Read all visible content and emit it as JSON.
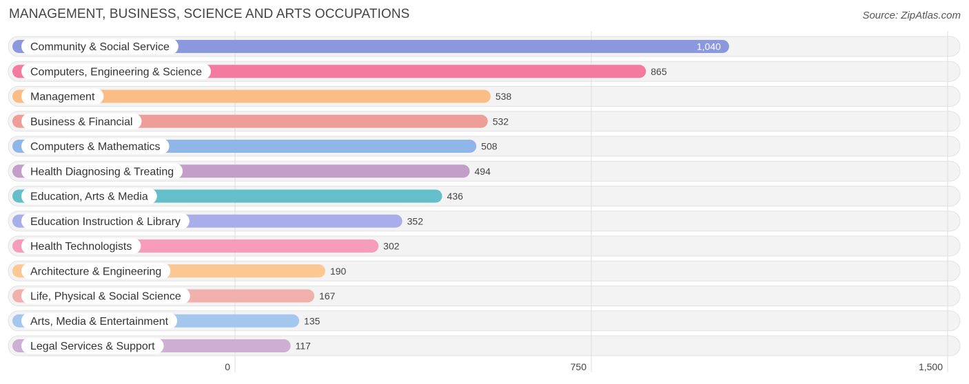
{
  "header": {
    "title": "MANAGEMENT, BUSINESS, SCIENCE AND ARTS OCCUPATIONS",
    "source": "Source: ZipAtlas.com"
  },
  "chart_data": {
    "type": "bar",
    "orientation": "horizontal",
    "title": "MANAGEMENT, BUSINESS, SCIENCE AND ARTS OCCUPATIONS",
    "xlabel": "",
    "ylabel": "",
    "xlim": [
      0,
      1500
    ],
    "ticks": [
      {
        "value": 0,
        "label": "0"
      },
      {
        "value": 750,
        "label": "750"
      },
      {
        "value": 1500,
        "label": "1,500"
      }
    ],
    "grid": true,
    "categories": [
      "Community & Social Service",
      "Computers, Engineering & Science",
      "Management",
      "Business & Financial",
      "Computers & Mathematics",
      "Health Diagnosing & Treating",
      "Education, Arts & Media",
      "Education Instruction & Library",
      "Health Technologists",
      "Architecture & Engineering",
      "Life, Physical & Social Science",
      "Arts, Media & Entertainment",
      "Legal Services & Support"
    ],
    "values": [
      1040,
      865,
      538,
      532,
      508,
      494,
      436,
      352,
      302,
      190,
      167,
      135,
      117
    ],
    "value_labels": [
      "1,040",
      "865",
      "538",
      "532",
      "508",
      "494",
      "436",
      "352",
      "302",
      "190",
      "167",
      "135",
      "117"
    ],
    "colors": [
      "#8b98dd",
      "#f57aa0",
      "#fbbd86",
      "#ee9d98",
      "#90b5e8",
      "#c29ec9",
      "#64bfcb",
      "#a9aeea",
      "#f79dbb",
      "#fbc792",
      "#f0b1ad",
      "#a5c7ee",
      "#ccafd2"
    ]
  }
}
